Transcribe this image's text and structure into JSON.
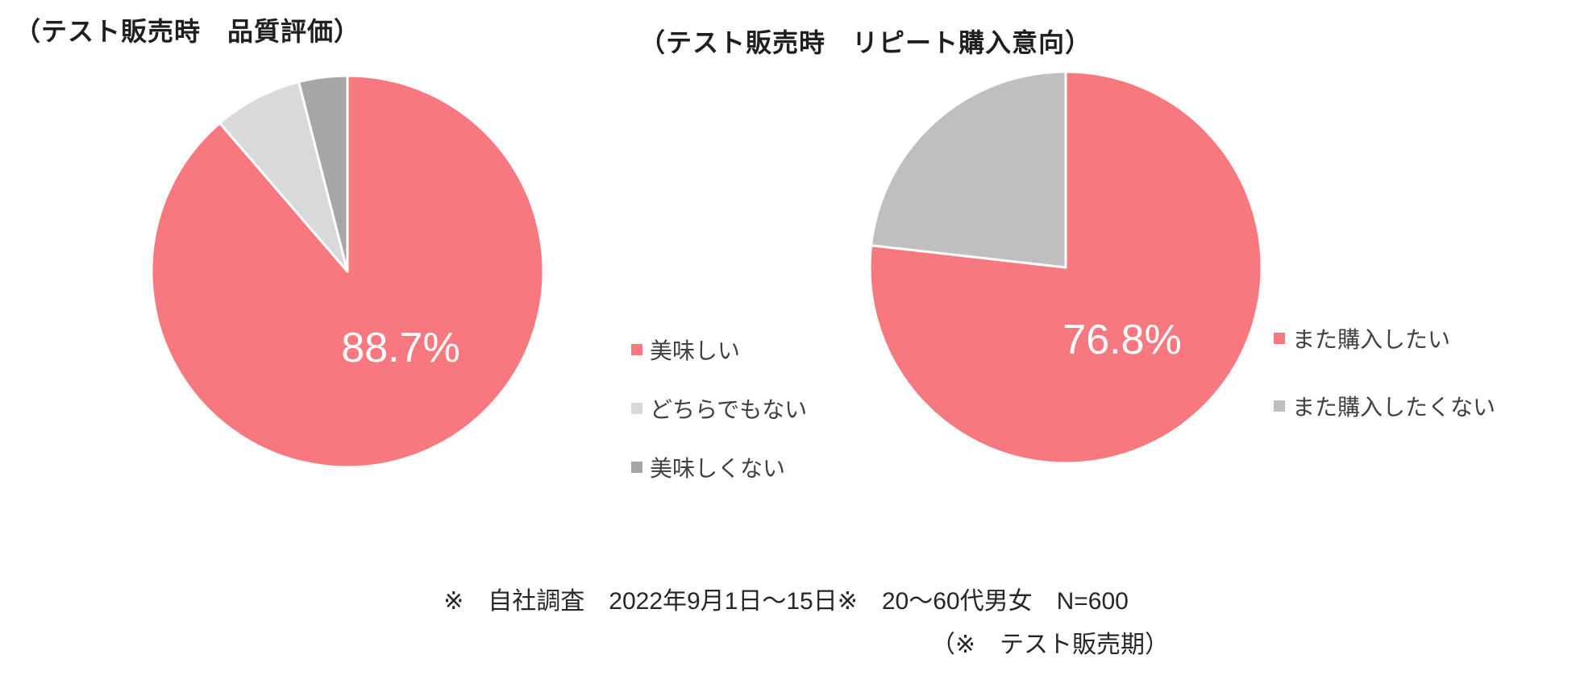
{
  "chart_data": [
    {
      "type": "pie",
      "title": "（テスト販売時　品質評価）",
      "labels": [
        "美味しい",
        "どちらでもない",
        "美味しくない"
      ],
      "values": [
        88.7,
        7.3,
        4.0
      ],
      "colors": [
        "#F7797F",
        "#D9D9D9",
        "#A6A6A6"
      ],
      "data_label": "88.7%",
      "legend_position": "right",
      "start_angle_deg": 0,
      "direction": "clockwise"
    },
    {
      "type": "pie",
      "title": "（テスト販売時　リピート購入意向）",
      "labels": [
        "また購入したい",
        "また購入したくない"
      ],
      "values": [
        76.8,
        23.2
      ],
      "colors": [
        "#F7797F",
        "#BFBFBF"
      ],
      "data_label": "76.8%",
      "legend_position": "right",
      "start_angle_deg": 0,
      "direction": "clockwise"
    }
  ],
  "footnote": {
    "line1": "※　自社調査　2022年9月1日～15日※　20～60代男女　N=600",
    "line2": "（※　テスト販売期）"
  },
  "style": {
    "accent_pink": "#F7797F",
    "light_gray": "#D9D9D9",
    "mid_gray": "#BFBFBF",
    "dark_gray": "#A6A6A6",
    "slice_border": "#FFFFFF",
    "title_color": "#1F1F1F",
    "background": "#FFFFFF"
  }
}
